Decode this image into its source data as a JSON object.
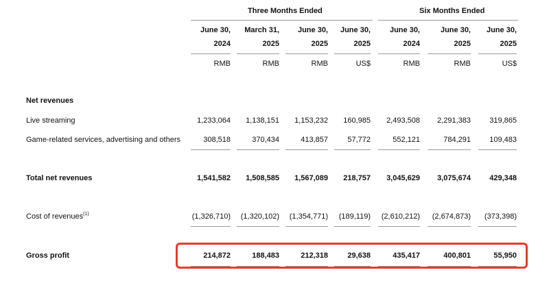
{
  "header": {
    "groups": [
      "Three Months Ended",
      "Six Months Ended"
    ],
    "columns": [
      {
        "line1": "June 30,",
        "line2": "2024",
        "currency": "RMB"
      },
      {
        "line1": "March 31,",
        "line2": "2025",
        "currency": "RMB"
      },
      {
        "line1": "June 30,",
        "line2": "2025",
        "currency": "RMB"
      },
      {
        "line1": "June 30,",
        "line2": "2025",
        "currency": "US$"
      },
      {
        "line1": "June 30,",
        "line2": "2024",
        "currency": "RMB"
      },
      {
        "line1": "June 30,",
        "line2": "2025",
        "currency": "RMB"
      },
      {
        "line1": "June 30,",
        "line2": "2025",
        "currency": "US$"
      }
    ]
  },
  "sections": {
    "net_revenues": "Net revenues"
  },
  "rows": [
    {
      "label": "Live streaming",
      "values": [
        "1,233,064",
        "1,138,151",
        "1,153,232",
        "160,985",
        "2,493,508",
        "2,291,383",
        "319,865"
      ]
    },
    {
      "label": "Game-related services, advertising and others",
      "values": [
        "308,518",
        "370,434",
        "413,857",
        "57,772",
        "552,121",
        "784,291",
        "109,483"
      ]
    },
    {
      "label": "Total net revenues",
      "values": [
        "1,541,582",
        "1,508,585",
        "1,567,089",
        "218,757",
        "3,045,629",
        "3,075,674",
        "429,348"
      ]
    },
    {
      "label": "Cost of revenues",
      "footnote": "(1)",
      "values": [
        "(1,326,710)",
        "(1,320,102)",
        "(1,354,771)",
        "(189,119)",
        "(2,610,212)",
        "(2,674,873)",
        "(373,398)"
      ]
    },
    {
      "label": "Gross profit",
      "values": [
        "214,872",
        "188,483",
        "212,318",
        "29,638",
        "435,417",
        "400,801",
        "55,950"
      ]
    }
  ],
  "colors": {
    "highlight": "#e53b2c"
  }
}
